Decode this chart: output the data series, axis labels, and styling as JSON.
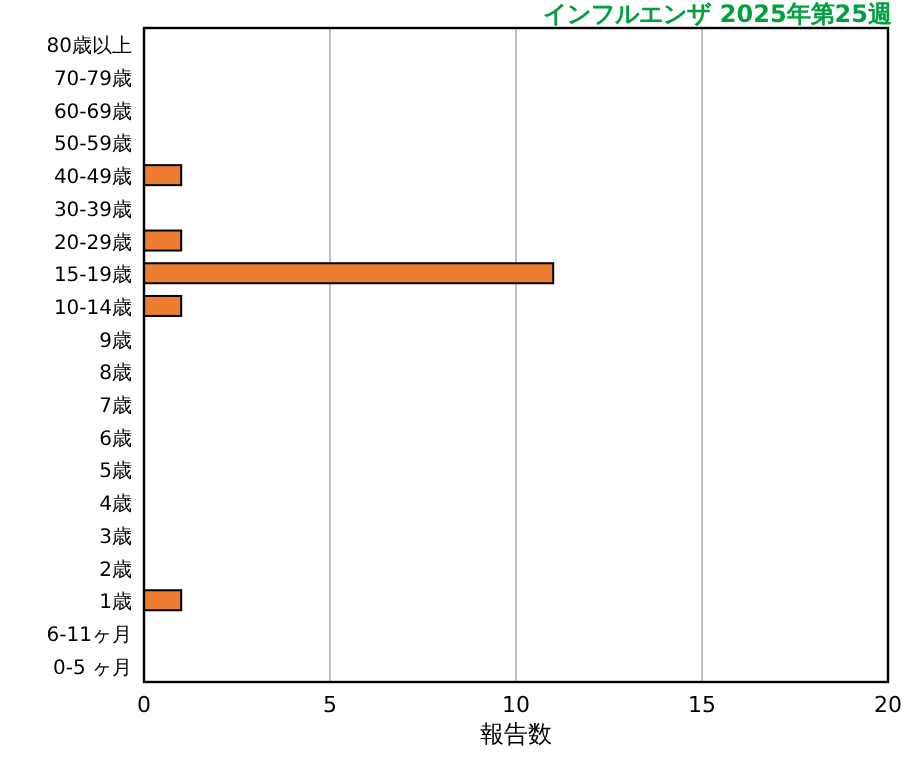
{
  "chart_data": {
    "type": "bar",
    "orientation": "horizontal",
    "title": "インフルエンザ 2025年第25週",
    "categories": [
      "80歳以上",
      "70-79歳",
      "60-69歳",
      "50-59歳",
      "40-49歳",
      "30-39歳",
      "20-29歳",
      "15-19歳",
      "10-14歳",
      "9歳",
      "8歳",
      "7歳",
      "6歳",
      "5歳",
      "4歳",
      "3歳",
      "2歳",
      "1歳",
      "6-11ヶ月",
      "0-5 ヶ月"
    ],
    "values": [
      0,
      0,
      0,
      0,
      1,
      0,
      1,
      11,
      1,
      0,
      0,
      0,
      0,
      0,
      0,
      0,
      0,
      1,
      0,
      0
    ],
    "color": "#ed7d31",
    "xlim": [
      0,
      20
    ],
    "xticks": [
      0,
      5,
      10,
      15,
      20
    ],
    "grid": "x",
    "xlabel": "報告数"
  }
}
